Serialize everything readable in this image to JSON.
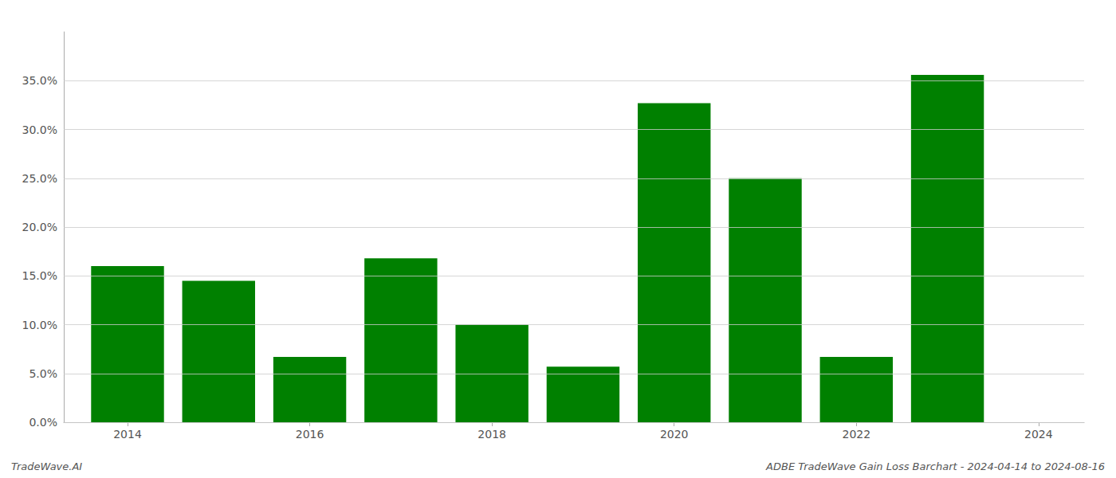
{
  "chart_data": {
    "type": "bar",
    "x": [
      2014,
      2015,
      2016,
      2017,
      2018,
      2019,
      2020,
      2021,
      2022,
      2023
    ],
    "values": [
      0.16,
      0.145,
      0.067,
      0.168,
      0.1,
      0.057,
      0.327,
      0.25,
      0.067,
      0.356
    ],
    "color": "#008000",
    "xlim": [
      2013.3,
      2024.5
    ],
    "xticks": [
      2014,
      2016,
      2018,
      2020,
      2022,
      2024
    ],
    "ylim": [
      0.0,
      0.4
    ],
    "yticks": [
      {
        "value": 0.0,
        "label": "0.0%"
      },
      {
        "value": 0.05,
        "label": "5.0%"
      },
      {
        "value": 0.1,
        "label": "10.0%"
      },
      {
        "value": 0.15,
        "label": "15.0%"
      },
      {
        "value": 0.2,
        "label": "20.0%"
      },
      {
        "value": 0.25,
        "label": "25.0%"
      },
      {
        "value": 0.3,
        "label": "30.0%"
      },
      {
        "value": 0.35,
        "label": "35.0%"
      }
    ],
    "grid": true,
    "annotations": [
      "TradeWave.AI",
      "ADBE TradeWave Gain Loss Barchart - 2024-04-14 to 2024-08-16"
    ]
  }
}
